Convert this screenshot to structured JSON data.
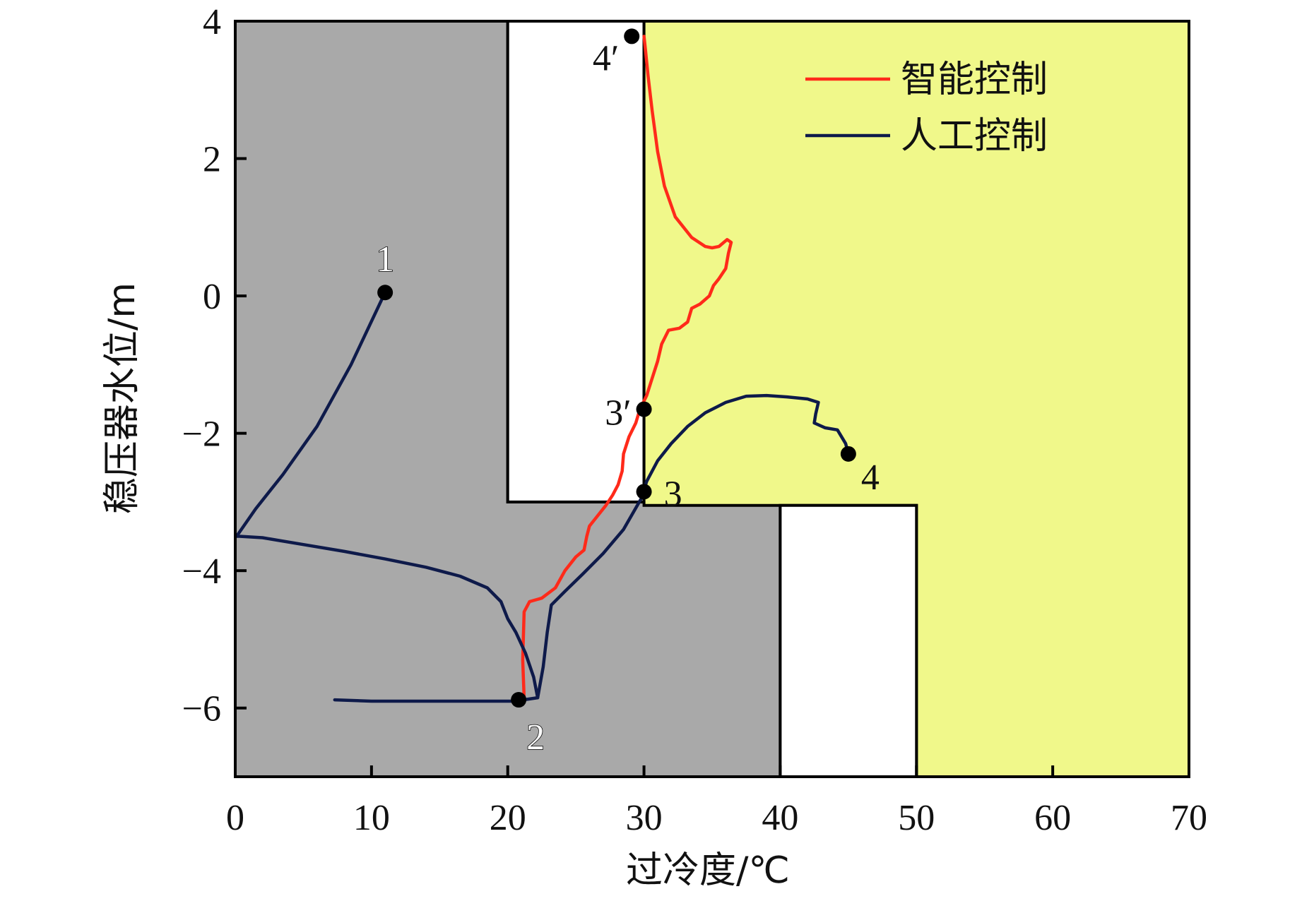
{
  "chart_data": {
    "type": "line",
    "xlabel": "过冷度/℃",
    "ylabel": "稳压器水位/m",
    "xlim": [
      0,
      70
    ],
    "ylim": [
      -7,
      4
    ],
    "x_ticks": [
      "0",
      "10",
      "20",
      "30",
      "40",
      "50",
      "60",
      "70"
    ],
    "x_tick_values": [
      0,
      10,
      20,
      30,
      40,
      50,
      60,
      70
    ],
    "y_ticks": [
      "4",
      "2",
      "0",
      "−2",
      "−4",
      "−6"
    ],
    "y_tick_values": [
      4,
      2,
      0,
      -2,
      -4,
      -6
    ],
    "grid": false,
    "legend_position": "top-right",
    "regions": [
      {
        "color": "#a9a9a9",
        "polygon": [
          [
            0,
            -7
          ],
          [
            0,
            4
          ],
          [
            20,
            4
          ],
          [
            20,
            -3
          ],
          [
            40,
            -3
          ],
          [
            40,
            -7
          ]
        ]
      },
      {
        "color": "#ffffff",
        "polygon": [
          [
            20,
            4
          ],
          [
            30,
            4
          ],
          [
            30,
            -3
          ],
          [
            20,
            -3
          ]
        ]
      },
      {
        "color": "#f0f88a",
        "polygon": [
          [
            30,
            4
          ],
          [
            70,
            4
          ],
          [
            70,
            -7
          ],
          [
            50,
            -7
          ],
          [
            50,
            -3.05
          ],
          [
            30,
            -3.05
          ]
        ]
      },
      {
        "color": "#ffffff",
        "polygon": [
          [
            40,
            -3.05
          ],
          [
            50,
            -3.05
          ],
          [
            50,
            -7
          ],
          [
            40,
            -7
          ]
        ]
      }
    ],
    "series": [
      {
        "name": "智能控制",
        "color": "#ff2a1a",
        "points": [
          [
            21.2,
            -5.85
          ],
          [
            21.1,
            -5.3
          ],
          [
            21.2,
            -4.6
          ],
          [
            21.6,
            -4.45
          ],
          [
            22.5,
            -4.4
          ],
          [
            23.5,
            -4.25
          ],
          [
            24.2,
            -4.0
          ],
          [
            25.0,
            -3.8
          ],
          [
            25.6,
            -3.7
          ],
          [
            25.8,
            -3.5
          ],
          [
            26.0,
            -3.35
          ],
          [
            26.6,
            -3.2
          ],
          [
            27.2,
            -3.05
          ],
          [
            27.7,
            -2.9
          ],
          [
            28.1,
            -2.75
          ],
          [
            28.4,
            -2.55
          ],
          [
            28.5,
            -2.3
          ],
          [
            28.9,
            -2.05
          ],
          [
            29.4,
            -1.85
          ],
          [
            29.7,
            -1.65
          ],
          [
            30.2,
            -1.45
          ],
          [
            30.6,
            -1.2
          ],
          [
            31.0,
            -0.95
          ],
          [
            31.3,
            -0.7
          ],
          [
            31.8,
            -0.5
          ],
          [
            32.6,
            -0.47
          ],
          [
            33.2,
            -0.38
          ],
          [
            33.5,
            -0.18
          ],
          [
            34.1,
            -0.12
          ],
          [
            34.8,
            0.0
          ],
          [
            35.1,
            0.15
          ],
          [
            35.5,
            0.25
          ],
          [
            36.0,
            0.4
          ],
          [
            36.2,
            0.62
          ],
          [
            36.4,
            0.78
          ],
          [
            36.1,
            0.82
          ],
          [
            35.5,
            0.72
          ],
          [
            35.0,
            0.7
          ],
          [
            34.5,
            0.72
          ],
          [
            33.5,
            0.85
          ],
          [
            32.3,
            1.15
          ],
          [
            31.5,
            1.6
          ],
          [
            31.0,
            2.1
          ],
          [
            30.6,
            2.7
          ],
          [
            30.3,
            3.2
          ],
          [
            30.1,
            3.6
          ],
          [
            30.0,
            3.78
          ]
        ]
      },
      {
        "name": "人工控制",
        "color": "#0e1a4a",
        "points": [
          [
            11.0,
            0.05
          ],
          [
            8.5,
            -1.0
          ],
          [
            6.0,
            -1.9
          ],
          [
            3.5,
            -2.6
          ],
          [
            1.5,
            -3.1
          ],
          [
            0.1,
            -3.5
          ],
          [
            0.3,
            -3.5
          ],
          [
            2.0,
            -3.52
          ],
          [
            5.0,
            -3.62
          ],
          [
            8.0,
            -3.72
          ],
          [
            11.0,
            -3.83
          ],
          [
            14.0,
            -3.95
          ],
          [
            16.5,
            -4.08
          ],
          [
            18.5,
            -4.25
          ],
          [
            19.5,
            -4.45
          ],
          [
            20.0,
            -4.7
          ],
          [
            20.6,
            -4.9
          ],
          [
            21.3,
            -5.2
          ],
          [
            21.9,
            -5.55
          ],
          [
            22.2,
            -5.85
          ],
          [
            22.6,
            -5.4
          ],
          [
            22.9,
            -4.9
          ],
          [
            23.2,
            -4.5
          ],
          [
            24.2,
            -4.3
          ],
          [
            25.5,
            -4.05
          ],
          [
            27.0,
            -3.75
          ],
          [
            28.5,
            -3.4
          ],
          [
            29.8,
            -2.95
          ],
          [
            30.2,
            -2.7
          ],
          [
            31.0,
            -2.4
          ],
          [
            32.0,
            -2.15
          ],
          [
            33.2,
            -1.9
          ],
          [
            34.5,
            -1.7
          ],
          [
            36.0,
            -1.55
          ],
          [
            37.5,
            -1.46
          ],
          [
            39.0,
            -1.45
          ],
          [
            40.5,
            -1.47
          ],
          [
            42.0,
            -1.5
          ],
          [
            42.8,
            -1.55
          ],
          [
            42.6,
            -1.72
          ],
          [
            42.5,
            -1.85
          ],
          [
            43.3,
            -1.92
          ],
          [
            44.2,
            -1.95
          ],
          [
            44.8,
            -2.15
          ],
          [
            45.0,
            -2.3
          ]
        ],
        "tail": [
          [
            7.3,
            -5.88
          ],
          [
            10.0,
            -5.9
          ],
          [
            14.0,
            -5.9
          ],
          [
            18.0,
            -5.9
          ],
          [
            20.5,
            -5.9
          ],
          [
            22.2,
            -5.85
          ]
        ]
      }
    ],
    "points": [
      {
        "label": "1",
        "x": 11.0,
        "y": 0.05
      },
      {
        "label": "2",
        "x": 20.8,
        "y": -5.88
      },
      {
        "label": "3",
        "x": 30.0,
        "y": -2.85
      },
      {
        "label": "3′",
        "x": 30.0,
        "y": -1.65
      },
      {
        "label": "4",
        "x": 45.0,
        "y": -2.3
      },
      {
        "label": "4′",
        "x": 29.1,
        "y": 3.78
      }
    ]
  }
}
